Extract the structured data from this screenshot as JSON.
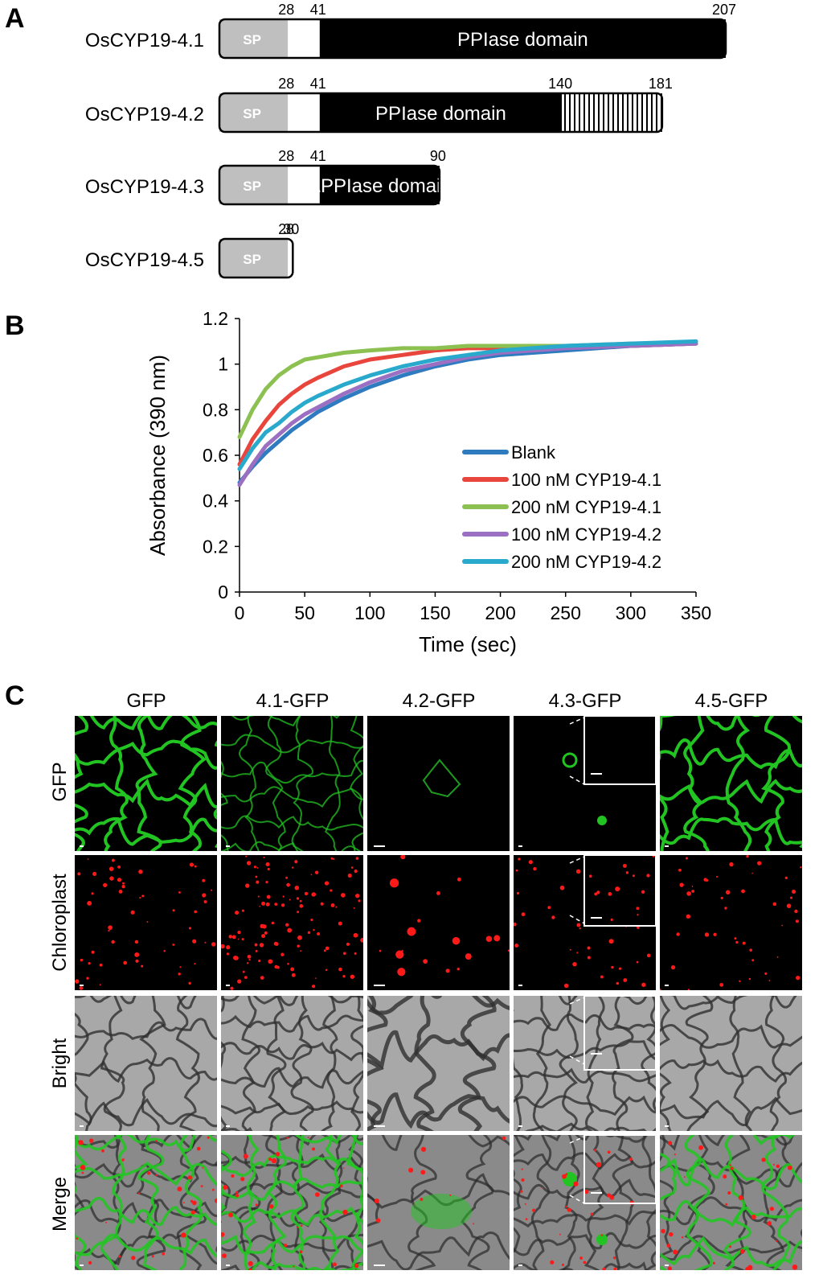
{
  "panel_a": {
    "letter": "A",
    "proteins": [
      {
        "name": "OsCYP19-4.1",
        "sp_label": "SP",
        "domain_label": "PPIase domain",
        "marks": [
          "28",
          "41",
          "207"
        ],
        "length": 207,
        "sp_end": 28,
        "domain_start": 41,
        "hatched_start": null
      },
      {
        "name": "OsCYP19-4.2",
        "sp_label": "SP",
        "domain_label": "PPIase domain",
        "marks": [
          "28",
          "41",
          "140",
          "181"
        ],
        "length": 181,
        "sp_end": 28,
        "domain_start": 41,
        "hatched_start": 140
      },
      {
        "name": "OsCYP19-4.3",
        "sp_label": "SP",
        "domain_label": "ΔPPIase domain",
        "marks": [
          "28",
          "41",
          "90"
        ],
        "length": 90,
        "sp_end": 28,
        "domain_start": 41,
        "hatched_start": null
      },
      {
        "name": "OsCYP19-4.5",
        "sp_label": "SP",
        "domain_label": "",
        "marks": [
          "28",
          "30"
        ],
        "length": 30,
        "sp_end": 28,
        "domain_start": null,
        "hatched_start": null
      }
    ],
    "colors": {
      "sp": "#bfbfbf",
      "domain": "#000000",
      "linker": "#ffffff"
    }
  },
  "panel_b": {
    "letter": "B",
    "chart_data": {
      "type": "line",
      "xlabel": "Time (sec)",
      "ylabel": "Absorbance (390 nm)",
      "xlim": [
        0,
        350
      ],
      "ylim": [
        0,
        1.2
      ],
      "x_ticks": [
        "0",
        "50",
        "100",
        "150",
        "200",
        "250",
        "300",
        "350"
      ],
      "y_ticks": [
        "0",
        "0.2",
        "0.4",
        "0.6",
        "0.8",
        "1",
        "1.2"
      ],
      "grid": false,
      "legend_position": "center-right",
      "x": [
        0,
        10,
        20,
        30,
        40,
        50,
        60,
        80,
        100,
        125,
        150,
        175,
        200,
        250,
        300,
        350
      ],
      "series": [
        {
          "name": "Blank",
          "color": "#2f7bbf",
          "values": [
            0.48,
            0.55,
            0.61,
            0.66,
            0.71,
            0.75,
            0.79,
            0.85,
            0.9,
            0.95,
            0.99,
            1.02,
            1.04,
            1.06,
            1.08,
            1.09
          ]
        },
        {
          "name": "100 nM CYP19-4.1",
          "color": "#e8453c",
          "values": [
            0.56,
            0.67,
            0.75,
            0.82,
            0.87,
            0.91,
            0.94,
            0.99,
            1.02,
            1.04,
            1.06,
            1.07,
            1.07,
            1.08,
            1.08,
            1.09
          ]
        },
        {
          "name": "200 nM CYP19-4.1",
          "color": "#8cc152",
          "values": [
            0.68,
            0.8,
            0.89,
            0.95,
            0.99,
            1.02,
            1.03,
            1.05,
            1.06,
            1.07,
            1.07,
            1.08,
            1.08,
            1.08,
            1.09,
            1.09
          ]
        },
        {
          "name": "100 nM CYP19-4.2",
          "color": "#9b6fc1",
          "values": [
            0.47,
            0.56,
            0.64,
            0.69,
            0.74,
            0.78,
            0.81,
            0.87,
            0.92,
            0.97,
            1.0,
            1.03,
            1.05,
            1.07,
            1.08,
            1.09
          ]
        },
        {
          "name": "200 nM CYP19-4.2",
          "color": "#29a9cc",
          "values": [
            0.54,
            0.63,
            0.7,
            0.74,
            0.79,
            0.83,
            0.86,
            0.91,
            0.95,
            0.99,
            1.02,
            1.04,
            1.06,
            1.08,
            1.09,
            1.1
          ]
        }
      ]
    }
  },
  "panel_c": {
    "letter": "C",
    "columns": [
      "GFP",
      "4.1-GFP",
      "4.2-GFP",
      "4.3-GFP",
      "4.5-GFP"
    ],
    "rows": [
      "GFP",
      "Chloroplast",
      "Bright",
      "Merge"
    ],
    "colors": {
      "gfp": "#22c422",
      "chloroplast": "#ff1a1a",
      "bright_bg": "#a8a8a8",
      "cell_wall": "#303030"
    }
  }
}
